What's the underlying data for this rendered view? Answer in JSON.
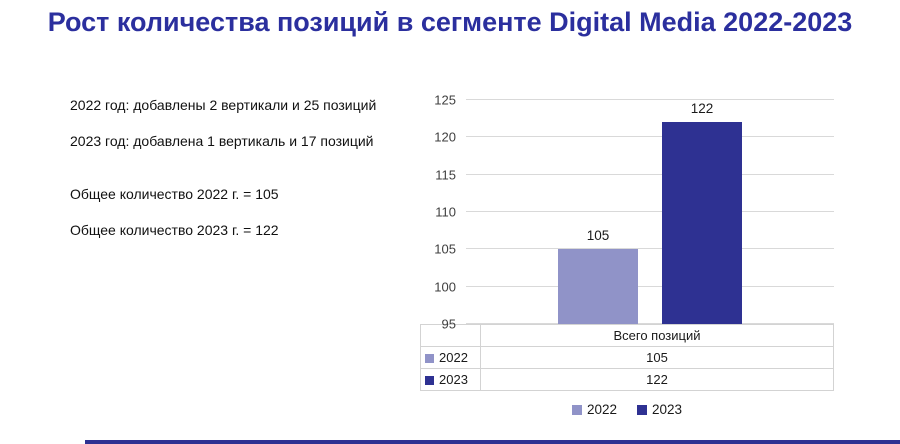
{
  "title": "Рост количества позиций в сегменте Digital Media 2022-2023",
  "notes": {
    "additions_2022": "2022 год: добавлены 2 вертикали и 25 позиций",
    "additions_2023": "2023 год: добавлена 1 вертикаль и 17 позиций",
    "total_2022": "Общее количество 2022 г. = 105",
    "total_2023": "Общее количество 2023 г. = 122"
  },
  "chart_data": {
    "type": "bar",
    "categories": [
      "Всего позиций"
    ],
    "series": [
      {
        "name": "2022",
        "values": [
          105
        ],
        "color": "#9093C8"
      },
      {
        "name": "2023",
        "values": [
          122
        ],
        "color": "#2E3192"
      }
    ],
    "title": "",
    "xlabel": "",
    "ylabel": "",
    "ylim": [
      95,
      125
    ],
    "ytick_step": 5,
    "yticks": [
      95,
      100,
      105,
      110,
      115,
      120,
      125
    ],
    "grid": true,
    "legend_position": "bottom",
    "data_table": {
      "header": "Всего позиций",
      "rows": [
        {
          "label": "2022",
          "value": "105"
        },
        {
          "label": "2023",
          "value": "122"
        }
      ]
    }
  },
  "colors": {
    "title_text": "#2B2F9E",
    "bar_2022": "#9093C8",
    "bar_2023": "#2E3192",
    "gridline": "#D9D9D9",
    "accent_bottom_bar": "#2E3192"
  }
}
